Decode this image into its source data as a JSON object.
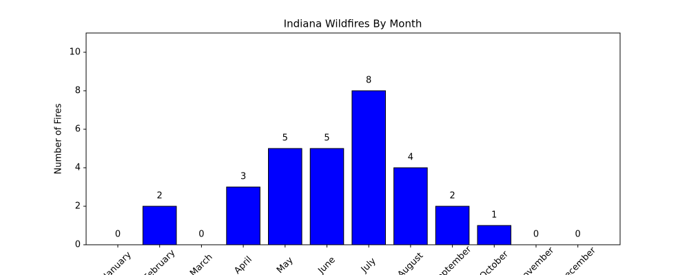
{
  "chart_data": {
    "type": "bar",
    "title": "Indiana Wildfires By Month",
    "ylabel": "Number of Fires",
    "categories": [
      "January",
      "February",
      "March",
      "April",
      "May",
      "June",
      "July",
      "August",
      "September",
      "October",
      "November",
      "December"
    ],
    "values": [
      0,
      2,
      0,
      3,
      5,
      5,
      8,
      4,
      2,
      1,
      0,
      0
    ],
    "color": "#0000ff",
    "ylim": [
      0,
      11
    ],
    "yticks": [
      0,
      2,
      4,
      6,
      8,
      10
    ]
  }
}
